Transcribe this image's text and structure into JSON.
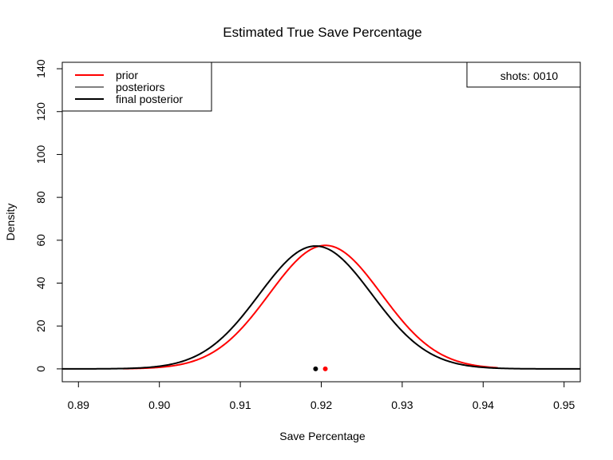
{
  "chart_data": {
    "type": "line",
    "title": "Estimated True Save Percentage",
    "xlabel": "Save Percentage",
    "ylabel": "Density",
    "xlim": [
      0.888,
      0.952
    ],
    "ylim": [
      -6,
      143
    ],
    "x_ticks": [
      0.89,
      0.9,
      0.91,
      0.92,
      0.93,
      0.94,
      0.95
    ],
    "x_tick_labels": [
      "0.89",
      "0.90",
      "0.91",
      "0.92",
      "0.93",
      "0.94",
      "0.95"
    ],
    "y_ticks": [
      0,
      20,
      40,
      60,
      80,
      100,
      120,
      140
    ],
    "y_tick_labels": [
      "0",
      "20",
      "40",
      "60",
      "80",
      "100",
      "120",
      "140"
    ],
    "grid": false,
    "legend_position": "top-left",
    "legend": [
      {
        "label": "prior",
        "color": "#ff0000"
      },
      {
        "label": "posteriors",
        "color": "#808080"
      },
      {
        "label": "final posterior",
        "color": "#000000"
      }
    ],
    "annotation_box": {
      "label": "shots:",
      "value": "0010",
      "position": "top-right"
    },
    "series": [
      {
        "name": "prior",
        "color": "#ff0000",
        "distribution": "normal",
        "mean": 0.9205,
        "peak": 57.6,
        "x_range": [
          0.8955,
          0.9418
        ]
      },
      {
        "name": "final posterior",
        "color": "#000000",
        "distribution": "normal",
        "mean": 0.9193,
        "peak": 57.3,
        "x_range": [
          0.888,
          0.952
        ]
      }
    ],
    "points": [
      {
        "series": "final posterior",
        "x": 0.9193,
        "y": 0.0,
        "color": "#000000"
      },
      {
        "series": "prior",
        "x": 0.9205,
        "y": 0.0,
        "color": "#ff0000"
      }
    ]
  }
}
